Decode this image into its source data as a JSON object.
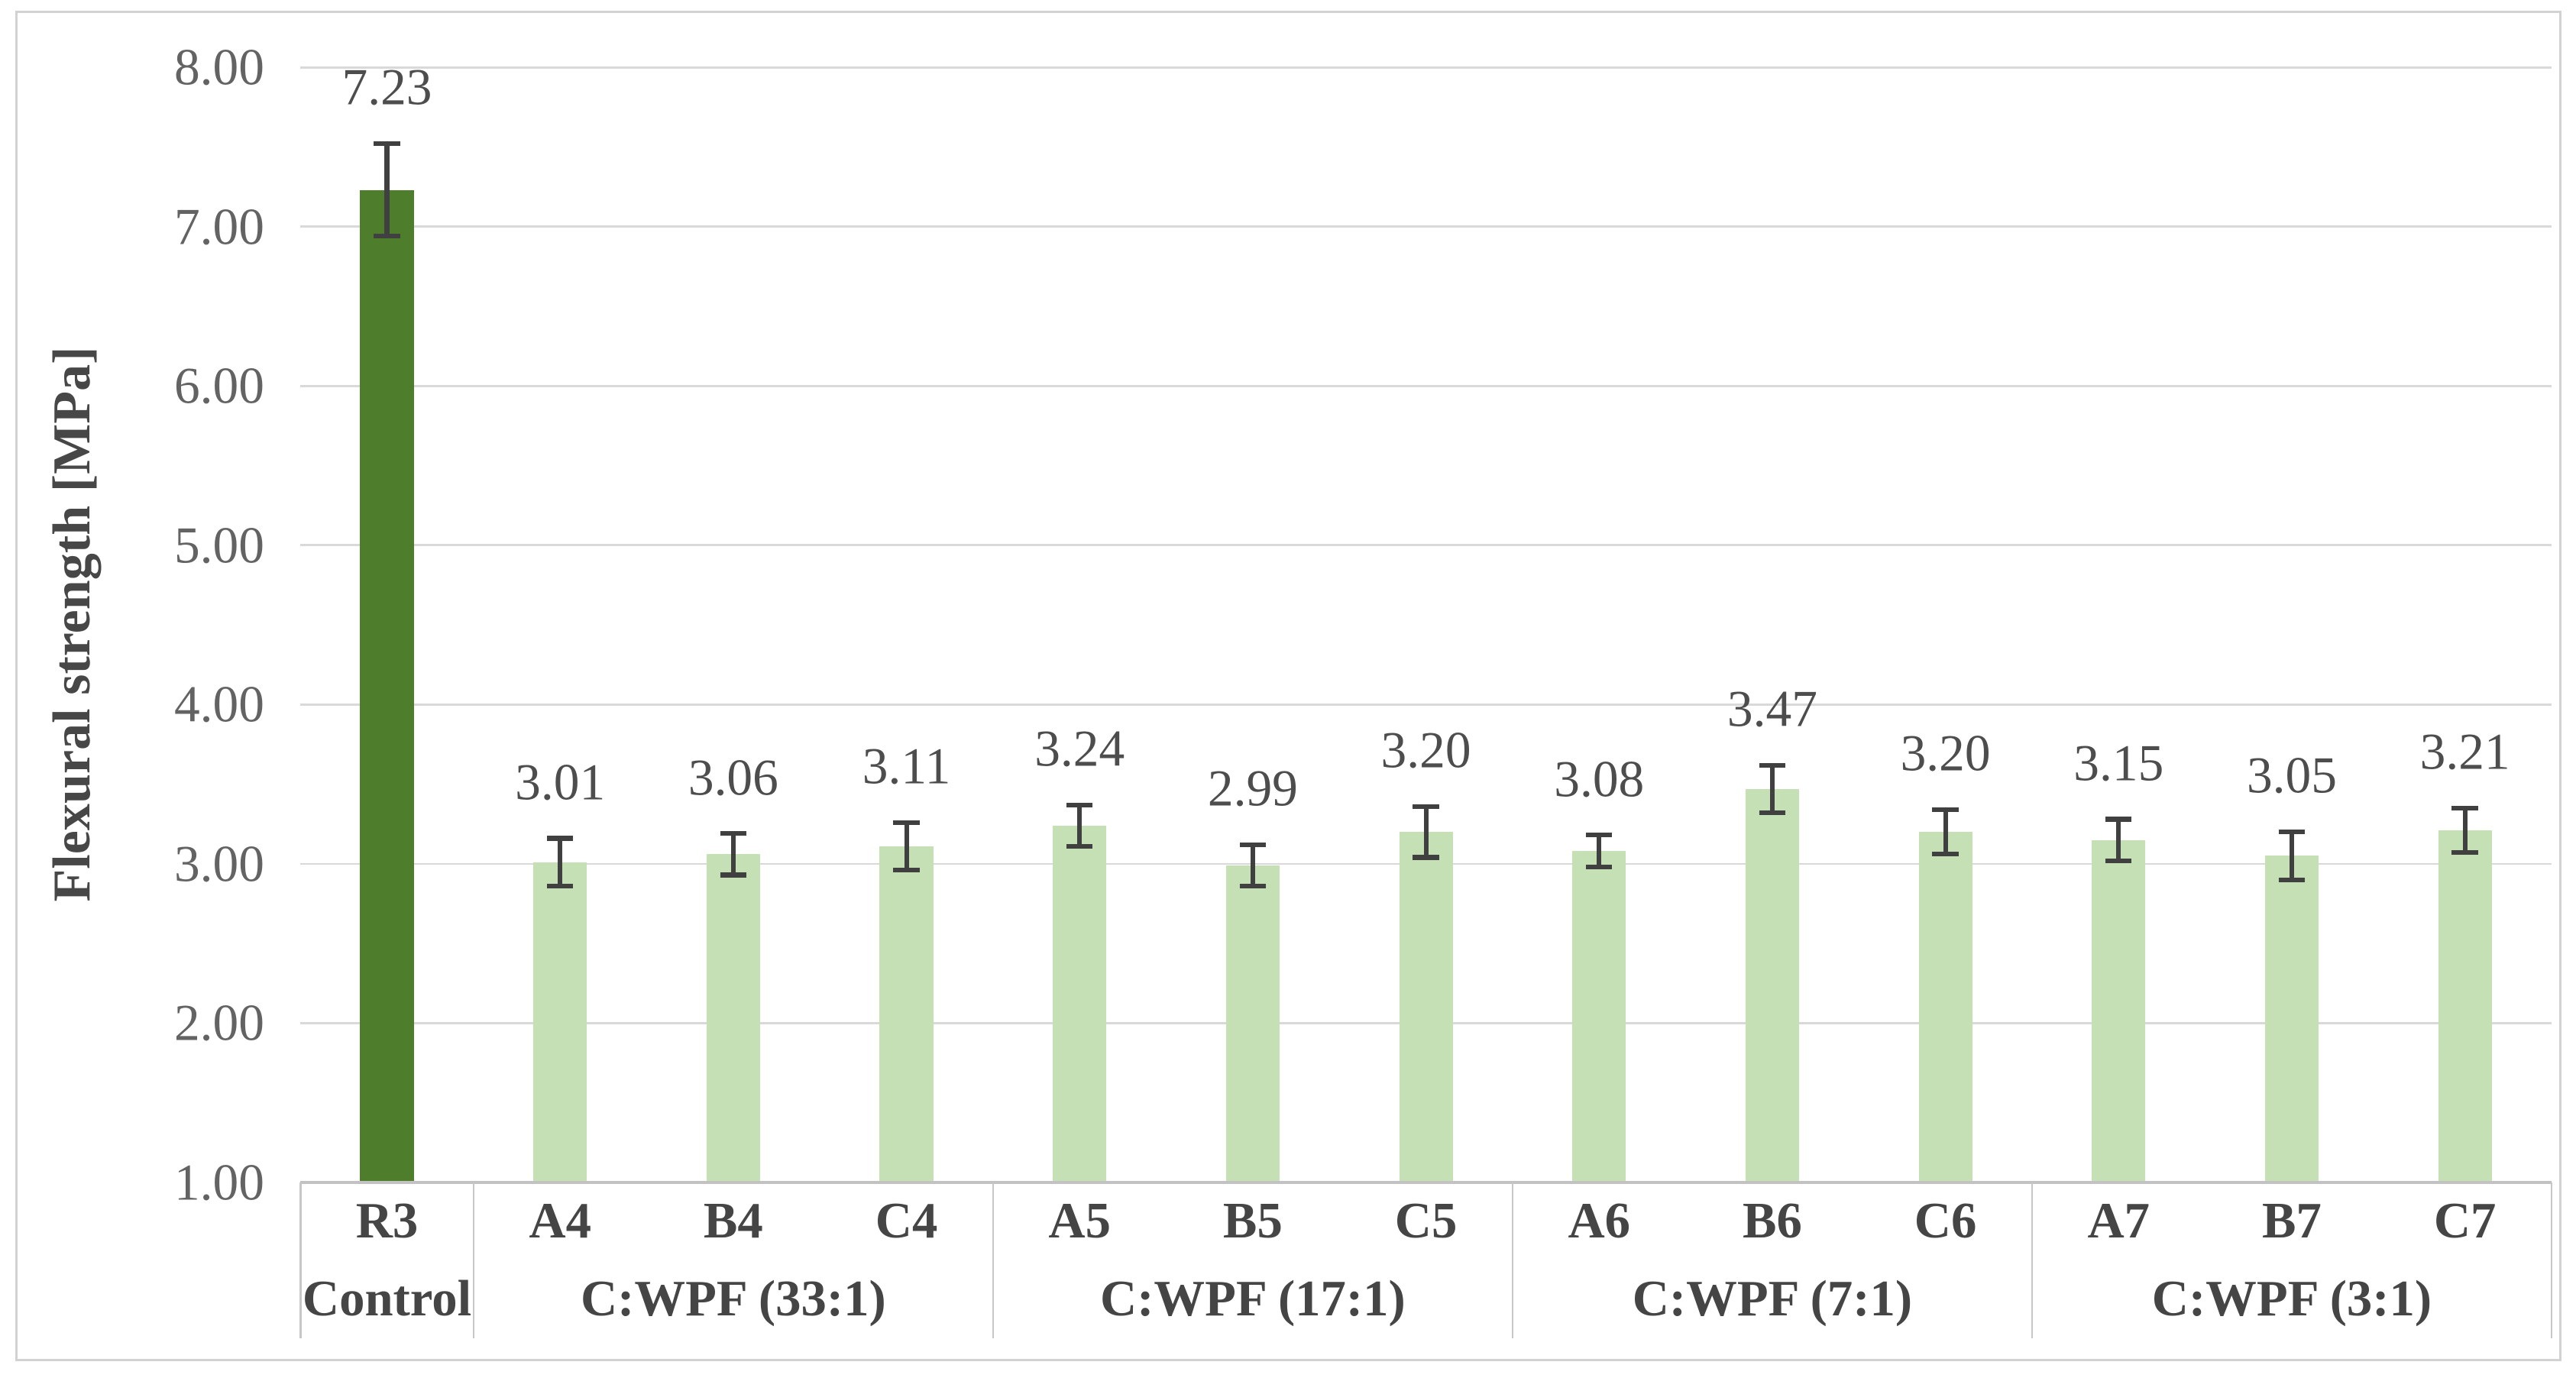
{
  "chart_data": {
    "type": "bar",
    "title": "",
    "xlabel": "",
    "ylabel": "Flexural strength [MPa]",
    "ylim": [
      1.0,
      8.0
    ],
    "ytick_step": 1.0,
    "yticks": [
      "8.00",
      "7.00",
      "6.00",
      "5.00",
      "4.00",
      "3.00",
      "2.00",
      "1.00"
    ],
    "grid": true,
    "legend": "none",
    "categories": [
      "R3",
      "A4",
      "B4",
      "C4",
      "A5",
      "B5",
      "C5",
      "A6",
      "B6",
      "C6",
      "A7",
      "B7",
      "C7"
    ],
    "groups": [
      {
        "label": "Control",
        "span": 1
      },
      {
        "label": "C:WPF (33:1)",
        "span": 3
      },
      {
        "label": "C:WPF (17:1)",
        "span": 3
      },
      {
        "label": "C:WPF (7:1)",
        "span": 3
      },
      {
        "label": "C:WPF (3:1)",
        "span": 3
      }
    ],
    "values": [
      7.23,
      3.01,
      3.06,
      3.11,
      3.24,
      2.99,
      3.2,
      3.08,
      3.47,
      3.2,
      3.15,
      3.05,
      3.21
    ],
    "errors": [
      0.29,
      0.15,
      0.13,
      0.15,
      0.13,
      0.13,
      0.16,
      0.1,
      0.15,
      0.14,
      0.13,
      0.15,
      0.14
    ],
    "data_labels": [
      "7.23",
      "3.01",
      "3.06",
      "3.11",
      "3.24",
      "2.99",
      "3.20",
      "3.08",
      "3.47",
      "3.20",
      "3.15",
      "3.05",
      "3.21"
    ],
    "colors": {
      "control_bar": "#4e7d2b",
      "bar": "#c5e0b4",
      "gridline": "#d9d9d9",
      "axis_line": "#c2c2c2",
      "error_bar": "#404040",
      "tick_text": "#636363",
      "label_text": "#4d4d4d",
      "category_text": "#454545",
      "border": "#d2d2d2"
    }
  }
}
